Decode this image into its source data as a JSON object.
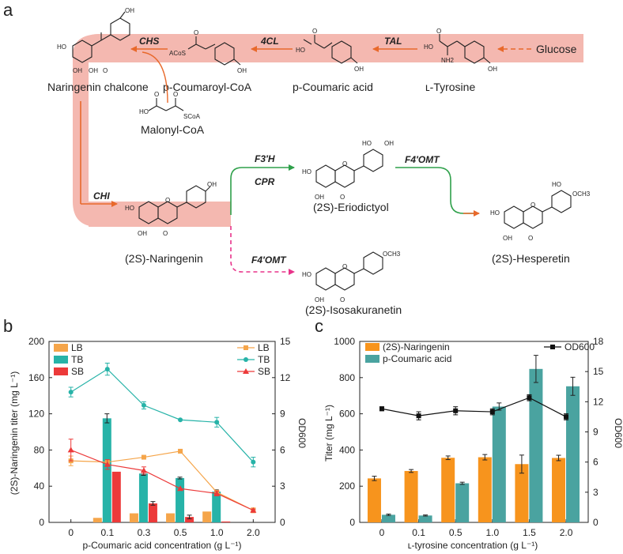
{
  "panels": {
    "a": "a",
    "b": "b",
    "c": "c"
  },
  "pathway": {
    "compounds": {
      "glucose": "Glucose",
      "tyrosine": "ʟ-Tyrosine",
      "coumaric_acid": "p-Coumaric acid",
      "coumaroyl_coa": "p-Coumaroyl-CoA",
      "naringenin_chalcone": "Naringenin chalcone",
      "malonyl_coa": "Malonyl-CoA",
      "naringenin": "(2S)-Naringenin",
      "eriodictyol": "(2S)-Eriodictyol",
      "isosakuranetin": "(2S)-Isosakuranetin",
      "hesperetin": "(2S)-Hesperetin"
    },
    "enzymes": {
      "tal": "TAL",
      "cl4": "4CL",
      "chs": "CHS",
      "chi": "CHI",
      "f3h": "F3′H",
      "cpr": "CPR",
      "f4omt_top": "F4′OMT",
      "f4omt_bottom": "F4′OMT"
    },
    "atoms": {
      "oh": "OH",
      "ho": "HO",
      "o": "O",
      "nh2": "NH2",
      "scoa": "SCoA",
      "acos": "ACoS",
      "och3": "OCH3",
      "ho_oh": "HO"
    },
    "colors": {
      "band": "#f4b8b0",
      "arrow": "#e8692b",
      "green": "#2ea04a",
      "pink": "#e8338a"
    }
  },
  "chart_data": [
    {
      "type": "bar",
      "panel": "b",
      "categories": [
        "0",
        "0.1",
        "0.3",
        "0.5",
        "1.0",
        "2.0"
      ],
      "xlabel": "p-Coumaric acid concentration (g L⁻¹)",
      "ylabel": "(2S)-Naringenin titer (mg L⁻¹)",
      "y2label": "OD600",
      "ylim": [
        0,
        200
      ],
      "yticks": [
        "0",
        "40",
        "80",
        "120",
        "160",
        "200"
      ],
      "y2lim": [
        0,
        15
      ],
      "y2ticks": [
        "0",
        "3",
        "6",
        "9",
        "12",
        "15"
      ],
      "bar_series": [
        {
          "name": "LB",
          "color": "#f5a54a",
          "values": [
            0,
            5,
            10,
            10,
            12,
            0
          ]
        },
        {
          "name": "TB",
          "color": "#27b3a8",
          "values": [
            0,
            115,
            54,
            49,
            34,
            0
          ]
        },
        {
          "name": "SB",
          "color": "#ec3a3a",
          "values": [
            0,
            56,
            21,
            6,
            1,
            0
          ]
        }
      ],
      "line_series": [
        {
          "name": "LB",
          "color": "#f5a54a",
          "marker": "square",
          "values": [
            5.1,
            5.0,
            5.4,
            5.9,
            2.5,
            1.0
          ]
        },
        {
          "name": "TB",
          "color": "#27b3a8",
          "marker": "circle",
          "values": [
            10.8,
            12.7,
            9.7,
            8.5,
            8.3,
            5.0
          ]
        },
        {
          "name": "SB",
          "color": "#ec3a3a",
          "marker": "triangle",
          "values": [
            6.0,
            4.8,
            4.3,
            2.8,
            2.4,
            1.0
          ]
        }
      ],
      "legend_left": [
        "LB",
        "TB",
        "SB"
      ],
      "legend_right": [
        "LB",
        "TB",
        "SB"
      ]
    },
    {
      "type": "bar",
      "panel": "c",
      "categories": [
        "0",
        "0.1",
        "0.5",
        "1.0",
        "1.5",
        "2.0"
      ],
      "xlabel": "ʟ-tyrosine concentration (g L⁻¹)",
      "ylabel": "Titer (mg L⁻¹)",
      "y2label": "OD600",
      "ylim": [
        0,
        1000
      ],
      "yticks": [
        "0",
        "200",
        "400",
        "600",
        "800",
        "1000"
      ],
      "y2lim": [
        0,
        18
      ],
      "y2ticks": [
        "0",
        "3",
        "6",
        "9",
        "12",
        "15",
        "18"
      ],
      "bar_series": [
        {
          "name": "(2S)-Naringenin",
          "color": "#f7941d",
          "values": [
            243,
            284,
            357,
            360,
            322,
            356
          ]
        },
        {
          "name": "p-Coumaric acid",
          "color": "#4aa3a0",
          "values": [
            42,
            38,
            216,
            640,
            848,
            752
          ]
        }
      ],
      "line_series": [
        {
          "name": "OD600",
          "color": "#111111",
          "marker": "square",
          "values": [
            11.3,
            10.6,
            11.1,
            11.0,
            12.4,
            10.5
          ]
        }
      ],
      "legend_left": [
        "(2S)-Naringenin",
        "p-Coumaric acid"
      ],
      "legend_right": [
        "OD600"
      ]
    }
  ]
}
